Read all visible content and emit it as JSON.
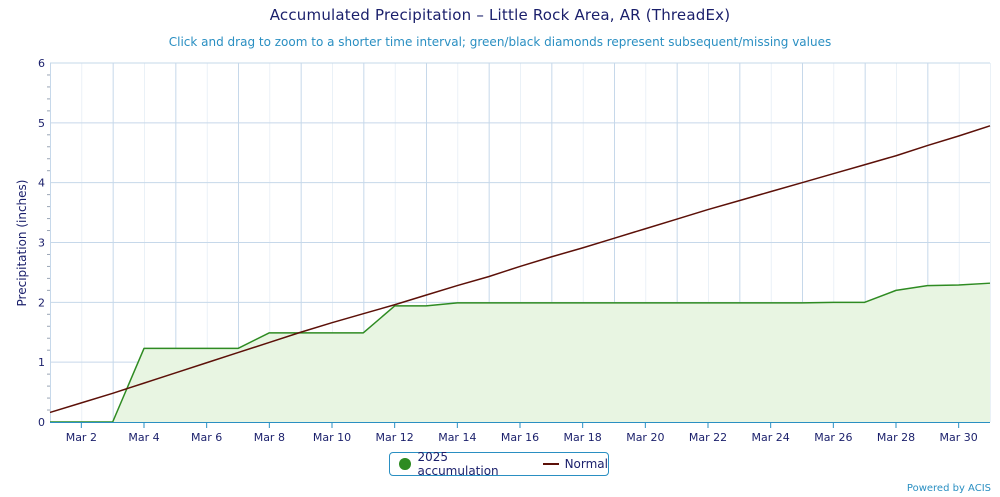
{
  "chart_data": {
    "type": "area",
    "title": "Accumulated Precipitation – Little Rock Area, AR (ThreadEx)",
    "subtitle": "Click and drag to zoom to a shorter time interval; green/black diamonds represent subsequent/missing values",
    "ylabel": "Precipitation (inches)",
    "xlabel": "",
    "ylim": [
      0,
      6
    ],
    "y_ticks": [
      0,
      1,
      2,
      3,
      4,
      5,
      6
    ],
    "xlim": [
      1,
      31
    ],
    "x_tick_days": [
      2,
      4,
      6,
      8,
      10,
      12,
      14,
      16,
      18,
      20,
      22,
      24,
      26,
      28,
      30
    ],
    "x_tick_labels": [
      "Mar 2",
      "Mar 4",
      "Mar 6",
      "Mar 8",
      "Mar 10",
      "Mar 12",
      "Mar 14",
      "Mar 16",
      "Mar 18",
      "Mar 20",
      "Mar 22",
      "Mar 24",
      "Mar 26",
      "Mar 28",
      "Mar 30"
    ],
    "grid": true,
    "series": [
      {
        "name": "2025 accumulation",
        "color": "#2e8b22",
        "fill": "#e8f5e2",
        "x": [
          1,
          2,
          3,
          4,
          5,
          6,
          7,
          8,
          9,
          10,
          11,
          12,
          13,
          14,
          15,
          16,
          17,
          18,
          19,
          20,
          21,
          22,
          23,
          24,
          25,
          26,
          27,
          28,
          29,
          30,
          31
        ],
        "values": [
          0,
          0,
          0,
          1.23,
          1.23,
          1.23,
          1.23,
          1.49,
          1.49,
          1.49,
          1.49,
          1.94,
          1.94,
          1.99,
          1.99,
          1.99,
          1.99,
          1.99,
          1.99,
          1.99,
          1.99,
          1.99,
          1.99,
          1.99,
          1.99,
          2.0,
          2.0,
          2.2,
          2.28,
          2.29,
          2.32
        ]
      },
      {
        "name": "Normal",
        "color": "#5c1008",
        "x": [
          1,
          2,
          3,
          4,
          5,
          6,
          7,
          8,
          9,
          10,
          11,
          12,
          13,
          14,
          15,
          16,
          17,
          18,
          19,
          20,
          21,
          22,
          23,
          24,
          25,
          26,
          27,
          28,
          29,
          30,
          31
        ],
        "values": [
          0.16,
          0.32,
          0.48,
          0.65,
          0.82,
          0.99,
          1.16,
          1.33,
          1.5,
          1.66,
          1.81,
          1.96,
          2.12,
          2.28,
          2.43,
          2.6,
          2.76,
          2.91,
          3.07,
          3.23,
          3.39,
          3.55,
          3.7,
          3.85,
          4.0,
          4.15,
          4.3,
          4.45,
          4.62,
          4.78,
          4.95
        ]
      }
    ]
  },
  "legend": {
    "items": [
      "2025 accumulation",
      "Normal"
    ]
  },
  "credit": "Powered by ACIS",
  "colors": {
    "title": "#1a1f6b",
    "subtitle": "#2a8fc2",
    "grid": "#c6d8ea",
    "axis": "#2a8fc2"
  }
}
